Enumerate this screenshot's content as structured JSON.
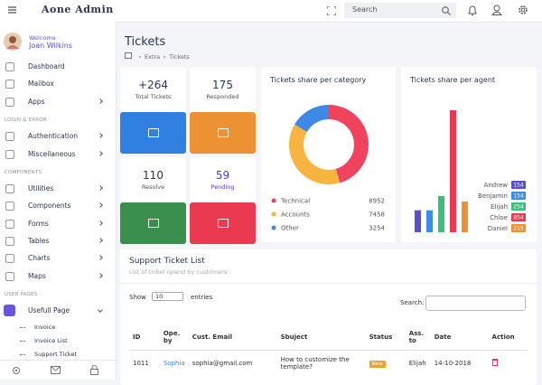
{
  "header": {
    "brand": "Aone Admin",
    "search": "Search"
  },
  "user": {
    "welcome": "Welcome",
    "name": "Joan Wilkins"
  },
  "sidebar": [
    {
      "label": "Dashboard"
    },
    {
      "label": "Mailbox"
    },
    {
      "label": "Apps",
      "arrow": true
    },
    {
      "section": "LOGIN & ERROR"
    },
    {
      "label": "Authentication",
      "arrow": true
    },
    {
      "label": "Miscellaneous",
      "arrow": true
    },
    {
      "section": "COMPONENTS"
    },
    {
      "label": "Utilities",
      "arrow": true
    },
    {
      "label": "Components",
      "arrow": true
    },
    {
      "label": "Forms",
      "arrow": true
    },
    {
      "label": "Tables",
      "arrow": true
    },
    {
      "label": "Charts",
      "arrow": true
    },
    {
      "label": "Maps",
      "arrow": true
    },
    {
      "section": "USER PAGES"
    },
    {
      "label": "Usefull Page",
      "arrow": true,
      "active": true
    },
    {
      "label": "Invoice",
      "sub": true
    },
    {
      "label": "Invoice List",
      "sub": true
    },
    {
      "label": "Support Ticket",
      "sub": true
    }
  ],
  "page": {
    "title": "Tickets",
    "breadcrumb": [
      "Extra",
      "Tickets"
    ]
  },
  "stats": [
    {
      "value": "+264",
      "label": "Total Tickets",
      "color": "#2f80e0"
    },
    {
      "value": 175,
      "label": "Responded",
      "color": "#ec9233"
    },
    {
      "value": 110,
      "label": "Resolve",
      "color": "#3a8f4e"
    },
    {
      "value": 59,
      "label": "Pending",
      "color": "#ea3a51"
    }
  ],
  "category_chart": {
    "type": "pie",
    "title": "Tickets share per category",
    "series": [
      {
        "name": "Technical",
        "color": "#f0435e",
        "value": 8952
      },
      {
        "name": "Accounts",
        "color": "#f7b43e",
        "value": 7458
      },
      {
        "name": "Other",
        "color": "#3d8ae6",
        "value": 3254
      }
    ]
  },
  "agent_chart": {
    "type": "bar",
    "title": "Tickets share per agent",
    "series": [
      {
        "name": "Andrew",
        "color": "#5a4fd0",
        "value": 154
      },
      {
        "name": "Benjamin",
        "color": "#3b8de8",
        "value": 154
      },
      {
        "name": "Elijah",
        "color": "#3cbf7a",
        "value": 254
      },
      {
        "name": "Chloe",
        "color": "#ea3a51",
        "value": 854
      },
      {
        "name": "Daniel",
        "color": "#ec9233",
        "value": 215
      }
    ]
  },
  "table": {
    "title": "Support Ticket List",
    "subtitle": "List of ticket opend by customers",
    "show": "Show",
    "page_size": 10,
    "entries": "entries",
    "search": "Search:",
    "headers": [
      "ID",
      "Ope. by",
      "Cust. Email",
      "Sbuject",
      "Status",
      "Ass. to",
      "Date",
      "Action"
    ],
    "rows": [
      [
        "1011",
        "Sophia",
        "sophia@gmail.com",
        "How to customize the template?",
        "New",
        "Elijah",
        "14-10-2018"
      ]
    ]
  }
}
